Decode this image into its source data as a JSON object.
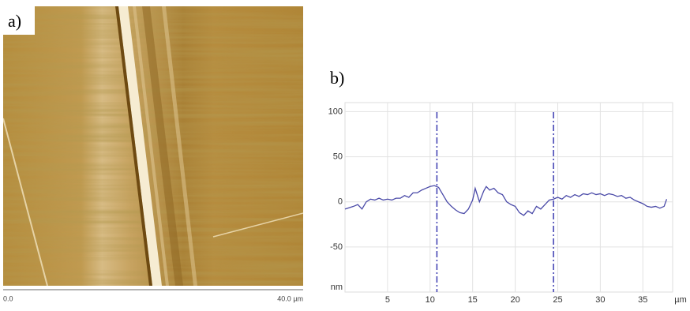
{
  "image": {
    "label": "a)",
    "scale_start": "0.0",
    "scale_end": "40.0 µm"
  },
  "chart_data": {
    "type": "line",
    "panel_label": "b)",
    "y_label": "nm",
    "x_label": "µm",
    "x": [
      0,
      1,
      1.5,
      2,
      2.5,
      3,
      3.5,
      4,
      4.5,
      5,
      5.5,
      6,
      6.5,
      7,
      7.5,
      8,
      8.5,
      9,
      9.5,
      10,
      10.5,
      11,
      11.5,
      12,
      12.5,
      13,
      13.5,
      14,
      14.5,
      15,
      15.3,
      15.8,
      16.3,
      16.6,
      17,
      17.5,
      18,
      18.5,
      19,
      19.5,
      20,
      20.5,
      21,
      21.5,
      22,
      22.5,
      23,
      23.5,
      24,
      24.5,
      25,
      25.5,
      26,
      26.5,
      27,
      27.5,
      28,
      28.5,
      29,
      29.5,
      30,
      30.5,
      31,
      31.5,
      32,
      32.5,
      33,
      33.5,
      34,
      34.5,
      35,
      35.5,
      36,
      36.5,
      37,
      37.5,
      37.8
    ],
    "series": [
      {
        "color": "#4a4aa8",
        "values": [
          -8,
          -5,
          -3,
          -8,
          0,
          3,
          2,
          4,
          2,
          3,
          2,
          4,
          4,
          7,
          5,
          10,
          10,
          13,
          15,
          17,
          18,
          16,
          8,
          0,
          -5,
          -9,
          -12,
          -13,
          -8,
          2,
          15,
          0,
          12,
          17,
          13,
          15,
          10,
          8,
          0,
          -3,
          -5,
          -12,
          -15,
          -10,
          -13,
          -5,
          -8,
          -3,
          2,
          3,
          5,
          3,
          7,
          5,
          8,
          6,
          9,
          8,
          10,
          8,
          9,
          7,
          9,
          8,
          6,
          7,
          4,
          5,
          2,
          0,
          -2,
          -5,
          -6,
          -5,
          -7,
          -5,
          3
        ]
      }
    ],
    "markers": [
      10.8,
      24.5
    ],
    "marker_color": "#3a3ab0",
    "xlim": [
      0,
      38.5
    ],
    "ylim": [
      -100,
      110
    ],
    "xticks": [
      5,
      10,
      15,
      20,
      25,
      30,
      35
    ],
    "yticks": [
      100,
      50,
      0,
      -50
    ],
    "grid": true
  }
}
